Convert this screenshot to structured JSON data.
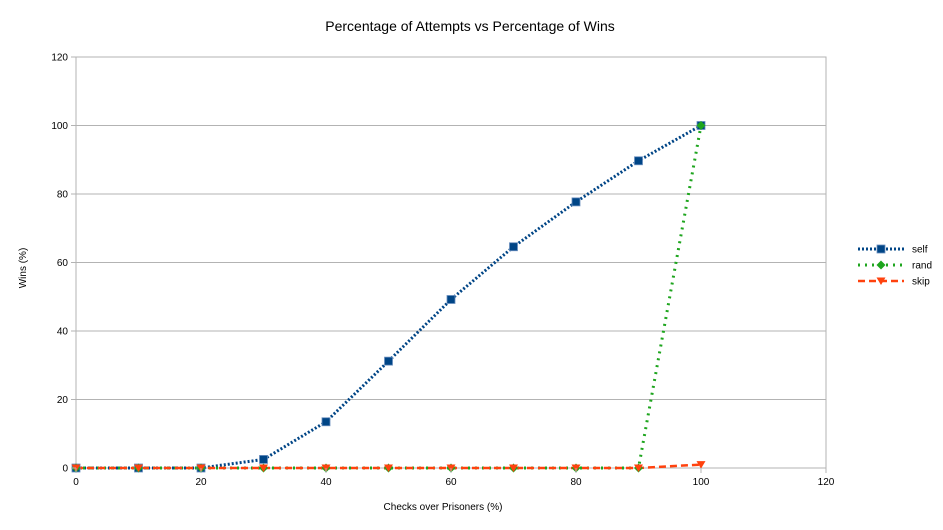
{
  "chart_data": {
    "type": "line",
    "title": "Percentage of Attempts vs Percentage of Wins",
    "xlabel": "Checks over Prisoners (%)",
    "ylabel": "Wins (%)",
    "xlim": [
      0,
      120
    ],
    "ylim": [
      0,
      120
    ],
    "xticks": [
      0,
      20,
      40,
      60,
      80,
      100,
      120
    ],
    "yticks": [
      0,
      20,
      40,
      60,
      80,
      100,
      120
    ],
    "grid": {
      "horizontal": true,
      "vertical": false
    },
    "legend": {
      "position": "right"
    },
    "x": [
      0,
      10,
      20,
      30,
      40,
      50,
      60,
      70,
      80,
      90,
      100
    ],
    "series": [
      {
        "name": "self",
        "color": "#004586",
        "line_style": "dotted",
        "marker": "square",
        "values": [
          0,
          0,
          0,
          2.5,
          13.5,
          31.2,
          49.2,
          64.6,
          77.7,
          89.7,
          100
        ]
      },
      {
        "name": "rand",
        "color": "#1ea51e",
        "line_style": "dotted-sparse",
        "marker": "diamond",
        "values": [
          0,
          0,
          0,
          0,
          0,
          0,
          0,
          0,
          0,
          0,
          100
        ]
      },
      {
        "name": "skip",
        "color": "#ff420e",
        "line_style": "dashed",
        "marker": "triangle-down",
        "values": [
          0,
          0,
          0,
          0,
          0,
          0,
          0,
          0,
          0,
          0,
          1
        ]
      }
    ]
  }
}
